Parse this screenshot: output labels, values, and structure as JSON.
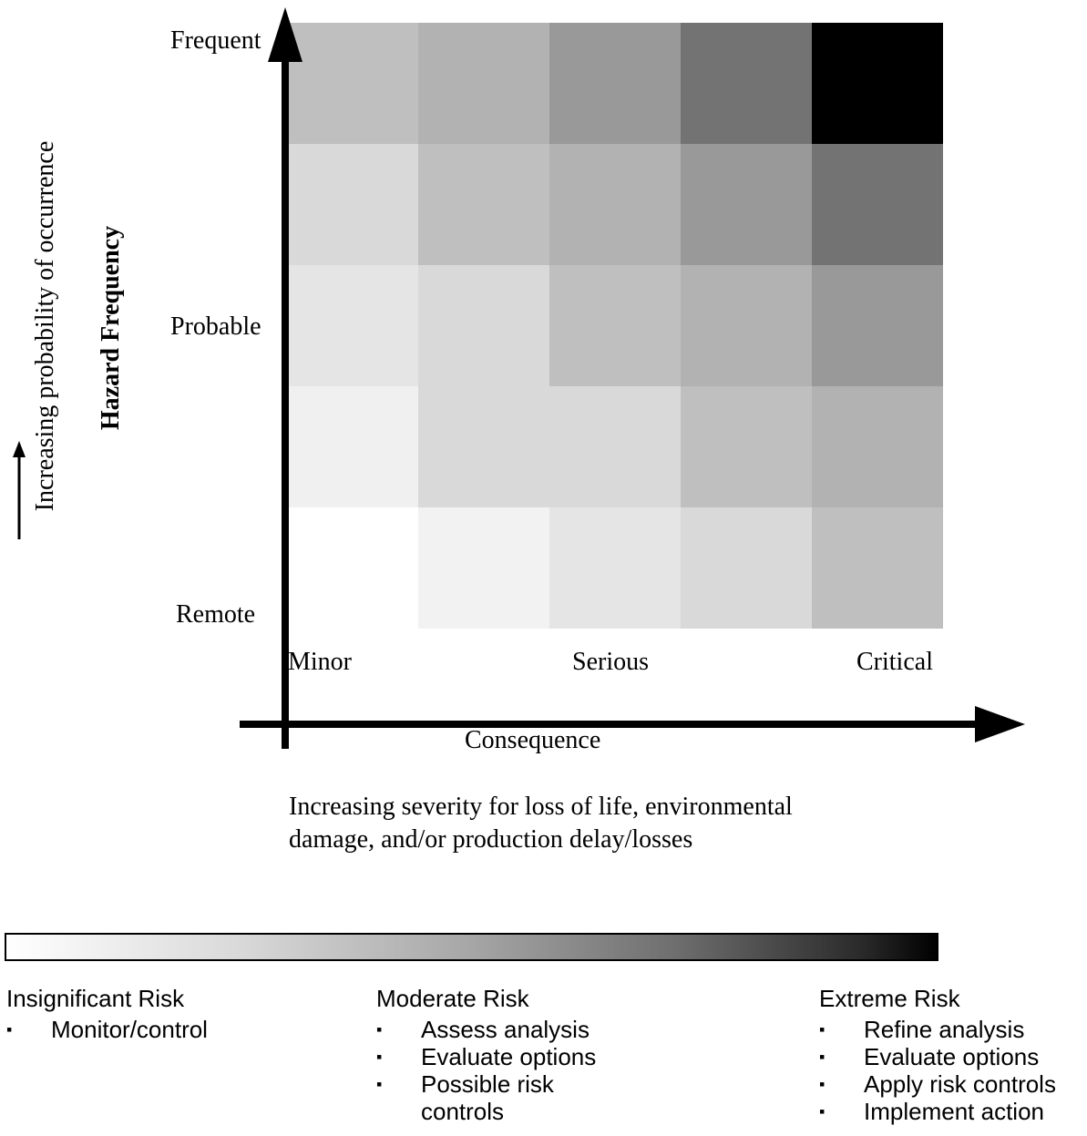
{
  "y_axis": {
    "title": "Hazard Frequency",
    "direction_note": "Increasing probability of occurrence",
    "tick_labels": [
      "Frequent",
      "Probable",
      "Remote"
    ]
  },
  "x_axis": {
    "title": "Consequence",
    "tick_labels": [
      "Minor",
      "Serious",
      "Critical"
    ],
    "direction_note_line1": "Increasing severity for loss of life, environmental",
    "direction_note_line2": "damage, and/or production delay/losses"
  },
  "matrix": {
    "rows": 5,
    "cols": 5,
    "shades": [
      [
        "#bfbfbf",
        "#b2b2b2",
        "#999999",
        "#737373",
        "#000000"
      ],
      [
        "#d9d9d9",
        "#bfbfbf",
        "#b2b2b2",
        "#999999",
        "#737373"
      ],
      [
        "#e5e5e5",
        "#d9d9d9",
        "#bfbfbf",
        "#b2b2b2",
        "#999999"
      ],
      [
        "#f0f0f0",
        "#d9d9d9",
        "#d9d9d9",
        "#bfbfbf",
        "#b2b2b2"
      ],
      [
        "#ffffff",
        "#f2f2f2",
        "#e5e5e5",
        "#d9d9d9",
        "#bfbfbf"
      ]
    ]
  },
  "legend": {
    "columns": [
      {
        "heading": "Insignificant Risk",
        "items": [
          "Monitor/control"
        ]
      },
      {
        "heading": "Moderate Risk",
        "items": [
          "Assess analysis",
          "Evaluate options",
          "Possible risk controls"
        ]
      },
      {
        "heading": "Extreme Risk",
        "items": [
          "Refine analysis",
          "Evaluate options",
          "Apply risk controls",
          "Implement action"
        ]
      }
    ],
    "bullet_glyph": "▪"
  }
}
